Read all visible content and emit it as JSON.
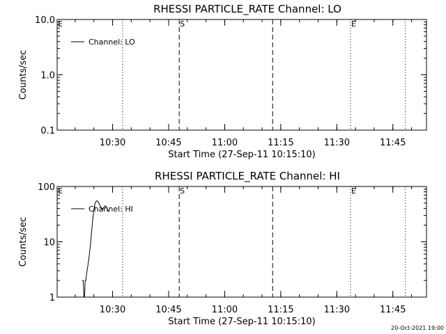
{
  "chart_data": [
    {
      "type": "line",
      "title": "RHESSI PARTICLE_RATE Channel: LO",
      "xlabel": "Start Time (27-Sep-11 10:15:10)",
      "ylabel": "Counts/sec",
      "yscale": "log",
      "ylim": [
        0.1,
        10.0
      ],
      "yticks": [
        {
          "value": 0.1,
          "label": "0.1"
        },
        {
          "value": 1.0,
          "label": "1.0"
        },
        {
          "value": 10.0,
          "label": "10.0"
        }
      ],
      "xlim": [
        "10:15:10",
        "11:54:00"
      ],
      "xticks": [
        "10:30",
        "10:45",
        "11:00",
        "11:15",
        "11:30",
        "11:45"
      ],
      "legend": {
        "placement": "top-left",
        "entries": [
          "Channel: LO"
        ]
      },
      "series": [
        {
          "name": "Channel: LO",
          "x": [],
          "y": []
        }
      ],
      "markers": [
        {
          "time": "10:32:40",
          "style": "dotted",
          "label": ""
        },
        {
          "time": "10:47:50",
          "style": "dashed",
          "label": "S"
        },
        {
          "time": "11:12:50",
          "style": "dashed",
          "label": ""
        },
        {
          "time": "11:33:40",
          "style": "dotted",
          "label": "E"
        },
        {
          "time": "11:48:20",
          "style": "dotted",
          "label": ""
        }
      ],
      "corner_label": "E"
    },
    {
      "type": "line",
      "title": "RHESSI PARTICLE_RATE Channel: HI",
      "xlabel": "Start Time (27-Sep-11 10:15:10)",
      "ylabel": "Counts/sec",
      "yscale": "log",
      "ylim": [
        1,
        100
      ],
      "yticks": [
        {
          "value": 1,
          "label": "1"
        },
        {
          "value": 10,
          "label": "10"
        },
        {
          "value": 100,
          "label": "100"
        }
      ],
      "xlim": [
        "10:15:10",
        "11:54:00"
      ],
      "xticks": [
        "10:30",
        "10:45",
        "11:00",
        "11:15",
        "11:30",
        "11:45"
      ],
      "legend": {
        "placement": "top-left",
        "entries": [
          "Channel: HI"
        ]
      },
      "series": [
        {
          "name": "Channel: HI",
          "x": [
            "10:21:50",
            "10:22:10",
            "10:22:20",
            "10:22:30",
            "10:22:40",
            "10:22:50",
            "10:23:00",
            "10:23:20",
            "10:23:40",
            "10:24:00",
            "10:24:20",
            "10:24:40",
            "10:25:00",
            "10:25:20",
            "10:25:40",
            "10:26:00",
            "10:26:20",
            "10:26:40",
            "10:27:00",
            "10:27:20",
            "10:27:40",
            "10:28:00",
            "10:28:20",
            "10:28:40",
            "10:29:00"
          ],
          "y": [
            2.0,
            2.0,
            1.0,
            1.0,
            2.0,
            2.0,
            2.5,
            3.5,
            5.0,
            8.0,
            14.0,
            24.0,
            38.0,
            50.0,
            55.0,
            54.0,
            50.0,
            44.0,
            40.0,
            38.0,
            42.0,
            45.0,
            43.0,
            38.0,
            35.0
          ]
        }
      ],
      "markers": [
        {
          "time": "10:32:40",
          "style": "dotted",
          "label": ""
        },
        {
          "time": "10:47:50",
          "style": "dashed",
          "label": "S"
        },
        {
          "time": "11:12:50",
          "style": "dashed",
          "label": ""
        },
        {
          "time": "11:33:40",
          "style": "dotted",
          "label": "E"
        },
        {
          "time": "11:48:20",
          "style": "dotted",
          "label": ""
        }
      ],
      "corner_label": "E"
    }
  ],
  "footer": {
    "timestamp": "20-Oct-2021 19:00"
  }
}
